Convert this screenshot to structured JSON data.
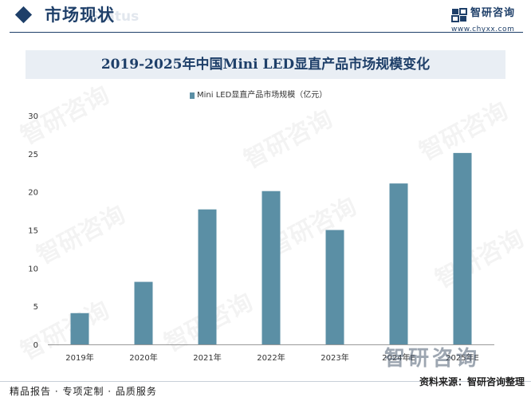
{
  "header": {
    "section_title": "市场现状",
    "section_subtitle": "Status"
  },
  "brand": {
    "name": "智研咨询",
    "url": "www.chyxx.com",
    "accent": "#1e3f69",
    "watermark": "智研咨询"
  },
  "footer": {
    "left": "精品报告 · 专项定制 · 品质服务",
    "source": "资料来源：智研咨询整理"
  },
  "chart_data": {
    "type": "bar",
    "title": "2019-2025年中国Mini LED显直产品市场规模变化",
    "categories": [
      "2019年",
      "2020年",
      "2021年",
      "2022年",
      "2023年",
      "2024年E",
      "2025年E"
    ],
    "series": [
      {
        "name": "Mini LED显直产品市场规模（亿元）",
        "values": [
          4.1,
          8.2,
          17.7,
          20.1,
          15.0,
          21.1,
          25.1
        ],
        "color": "#5b8fa5"
      }
    ],
    "yticks": [
      "0",
      "5",
      "10",
      "15",
      "20",
      "25",
      "30"
    ],
    "ylim": [
      0,
      30
    ],
    "grid": false,
    "legend": "top-center"
  }
}
